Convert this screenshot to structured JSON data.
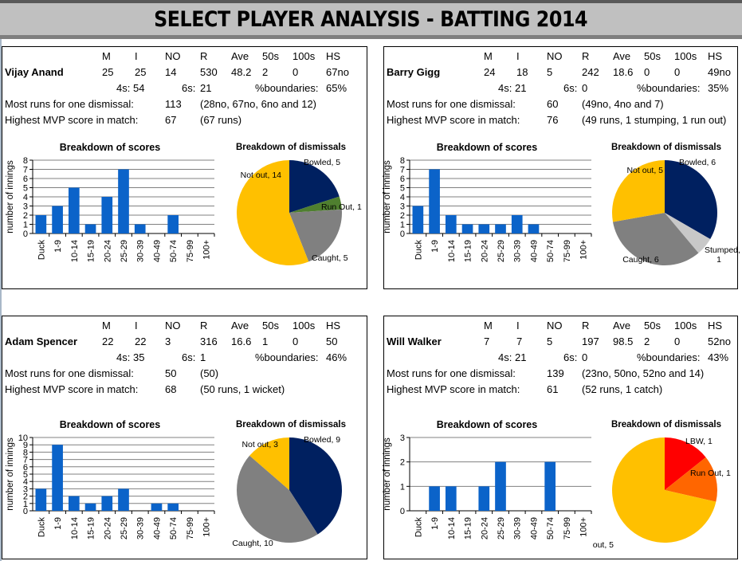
{
  "title": "SELECT PLAYER ANALYSIS - BATTING 2014",
  "headers": [
    "M",
    "I",
    "NO",
    "R",
    "Ave",
    "50s",
    "100s",
    "HS"
  ],
  "labels": {
    "fours": "4s:",
    "sixes": "6s:",
    "boundaries": "%boundaries:",
    "most_runs": "Most runs for one dismissal:",
    "highest_mvp": "Highest MVP score in match:"
  },
  "colors": {
    "bar": "#0b63c9",
    "bowled": "#002060",
    "caught": "#808080",
    "not_out": "#ffc000",
    "run_out_green": "#4f7f2f",
    "stumped": "#c8c8c8",
    "lbw": "#ff0000",
    "run_out_orange": "#ff6600"
  },
  "players": [
    {
      "name": "Vijay Anand",
      "stats": [
        "25",
        "25",
        "14",
        "530",
        "48.2",
        "2",
        "0",
        "67no"
      ],
      "fours": "54",
      "sixes": "21",
      "boundaries": "65%",
      "most_runs": "113",
      "most_runs_detail": "(28no, 67no, 6no and 12)",
      "highest_mvp": "67",
      "highest_mvp_detail": "(67 runs)"
    },
    {
      "name": "Barry Gigg",
      "stats": [
        "24",
        "18",
        "5",
        "242",
        "18.6",
        "0",
        "0",
        "49no"
      ],
      "fours": "21",
      "sixes": "0",
      "boundaries": "35%",
      "most_runs": "60",
      "most_runs_detail": "(49no, 4no and 7)",
      "highest_mvp": "76",
      "highest_mvp_detail": "(49 runs, 1 stumping, 1 run out)"
    },
    {
      "name": "Adam Spencer",
      "stats": [
        "22",
        "22",
        "3",
        "316",
        "16.6",
        "1",
        "0",
        "50"
      ],
      "fours": "35",
      "sixes": "1",
      "boundaries": "46%",
      "most_runs": "50",
      "most_runs_detail": "(50)",
      "highest_mvp": "68",
      "highest_mvp_detail": "(50 runs, 1 wicket)"
    },
    {
      "name": "Will Walker",
      "stats": [
        "7",
        "7",
        "5",
        "197",
        "98.5",
        "2",
        "0",
        "52no"
      ],
      "fours": "21",
      "sixes": "0",
      "boundaries": "43%",
      "most_runs": "139",
      "most_runs_detail": "(23no, 50no, 52no and 14)",
      "highest_mvp": "61",
      "highest_mvp_detail": "(52 runs, 1 catch)"
    }
  ],
  "chart_data": [
    {
      "type": "bar",
      "player": "Vijay Anand",
      "title": "Breakdown of scores",
      "ylabel": "number of innings",
      "xlabel": "",
      "categories": [
        "Duck",
        "1-9",
        "10-14",
        "15-19",
        "20-24",
        "25-29",
        "30-39",
        "40-49",
        "50-74",
        "75-99",
        "100+"
      ],
      "values": [
        2,
        3,
        5,
        1,
        4,
        7,
        1,
        0,
        2,
        0,
        0
      ],
      "ylim": [
        0,
        8
      ],
      "yticks": [
        0,
        1,
        2,
        3,
        4,
        5,
        6,
        7,
        8
      ],
      "grid": true
    },
    {
      "type": "pie",
      "player": "Vijay Anand",
      "title": "Breakdown of dismissals",
      "slices": [
        {
          "label": "Bowled",
          "value": 5,
          "color": "#002060"
        },
        {
          "label": "Run Out",
          "value": 1,
          "color": "#4f7f2f"
        },
        {
          "label": "Caught",
          "value": 5,
          "color": "#808080"
        },
        {
          "label": "Not out",
          "value": 14,
          "color": "#ffc000"
        }
      ]
    },
    {
      "type": "bar",
      "player": "Barry Gigg",
      "title": "Breakdown of scores",
      "ylabel": "number of innings",
      "xlabel": "",
      "categories": [
        "Duck",
        "1-9",
        "10-14",
        "15-19",
        "20-24",
        "25-29",
        "30-39",
        "40-49",
        "50-74",
        "75-99",
        "100+"
      ],
      "values": [
        3,
        7,
        2,
        1,
        1,
        1,
        2,
        1,
        0,
        0,
        0
      ],
      "ylim": [
        0,
        8
      ],
      "yticks": [
        0,
        1,
        2,
        3,
        4,
        5,
        6,
        7,
        8
      ],
      "grid": true
    },
    {
      "type": "pie",
      "player": "Barry Gigg",
      "title": "Breakdown of dismissals",
      "slices": [
        {
          "label": "Bowled",
          "value": 6,
          "color": "#002060"
        },
        {
          "label": "Stumped",
          "value": 1,
          "color": "#c8c8c8"
        },
        {
          "label": "Caught",
          "value": 6,
          "color": "#808080"
        },
        {
          "label": "Not out",
          "value": 5,
          "color": "#ffc000"
        }
      ]
    },
    {
      "type": "bar",
      "player": "Adam Spencer",
      "title": "Breakdown  of scores",
      "ylabel": "number of innings",
      "xlabel": "",
      "categories": [
        "Duck",
        "1-9",
        "10-14",
        "15-19",
        "20-24",
        "25-29",
        "30-39",
        "40-49",
        "50-74",
        "75-99",
        "100+"
      ],
      "values": [
        3,
        9,
        2,
        1,
        2,
        3,
        0,
        1,
        1,
        0,
        0
      ],
      "ylim": [
        0,
        10
      ],
      "yticks": [
        0,
        1,
        2,
        3,
        4,
        5,
        6,
        7,
        8,
        9,
        10
      ],
      "grid": true
    },
    {
      "type": "pie",
      "player": "Adam Spencer",
      "title": "Breakdown of dismissals",
      "slices": [
        {
          "label": "Bowled",
          "value": 9,
          "color": "#002060"
        },
        {
          "label": "Caught",
          "value": 10,
          "color": "#808080"
        },
        {
          "label": "Not out",
          "value": 3,
          "color": "#ffc000"
        }
      ]
    },
    {
      "type": "bar",
      "player": "Will Walker",
      "title": "Breakdown  of scores",
      "ylabel": "number of innings",
      "xlabel": "",
      "categories": [
        "Duck",
        "1-9",
        "10-14",
        "15-19",
        "20-24",
        "25-29",
        "30-39",
        "40-49",
        "50-74",
        "75-99",
        "100+"
      ],
      "values": [
        0,
        1,
        1,
        0,
        1,
        2,
        0,
        0,
        2,
        0,
        0
      ],
      "ylim": [
        0,
        3
      ],
      "yticks": [
        0,
        1,
        2,
        3
      ],
      "grid": true
    },
    {
      "type": "pie",
      "player": "Will Walker",
      "title": "Breakdown of dismissals",
      "slices": [
        {
          "label": "LBW",
          "value": 1,
          "color": "#ff0000"
        },
        {
          "label": "Run Out",
          "value": 1,
          "color": "#ff6600"
        },
        {
          "label": "Not out",
          "value": 5,
          "color": "#ffc000"
        }
      ]
    }
  ]
}
